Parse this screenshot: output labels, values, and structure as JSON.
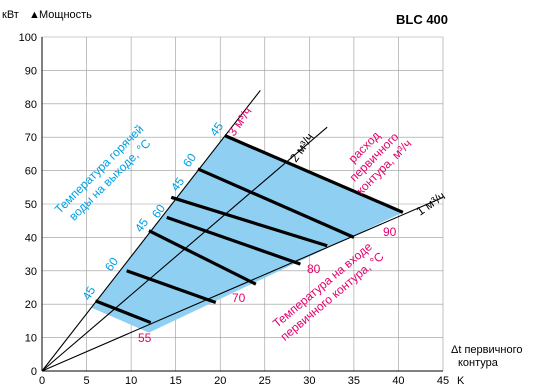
{
  "chart_data": {
    "type": "line",
    "title": "BLC 400",
    "ylabel_unit": "кВт",
    "ylabel": "Мощность",
    "xlabel": "Δt первичного",
    "xlabel_line2": "контура",
    "xunit": "K",
    "xlim": [
      0,
      45
    ],
    "ylim": [
      0,
      100
    ],
    "xticks": [
      "0",
      "5",
      "10",
      "15",
      "20",
      "25",
      "30",
      "35",
      "40",
      "45"
    ],
    "yticks": [
      "0",
      "10",
      "20",
      "30",
      "40",
      "50",
      "60",
      "70",
      "80",
      "90",
      "100"
    ],
    "grid": true,
    "flow_lines": [
      {
        "name": "1 м³/ч",
        "x": [
          0,
          45
        ],
        "y": [
          0,
          52
        ]
      },
      {
        "name": "2 м³/ч",
        "x": [
          0,
          32
        ],
        "y": [
          0,
          73
        ]
      },
      {
        "name": "3 м³/ч",
        "x": [
          0,
          24.5
        ],
        "y": [
          0,
          84
        ]
      }
    ],
    "constant_outlet_temp_lines": [
      {
        "outlet": "45",
        "inlet": "55",
        "x": [
          6.0,
          12.2
        ],
        "y": [
          21.0,
          14.5
        ]
      },
      {
        "outlet": "60",
        "inlet": "70",
        "x": [
          9.5,
          19.5
        ],
        "y": [
          30.0,
          20.5
        ]
      },
      {
        "outlet": "45",
        "inlet": "70",
        "x": [
          12.0,
          24.0
        ],
        "y": [
          42.0,
          26.0
        ]
      },
      {
        "outlet": "60",
        "inlet": "80",
        "x": [
          14.0,
          29.0
        ],
        "y": [
          46.0,
          32.0
        ]
      },
      {
        "outlet": "45",
        "inlet": "80",
        "x": [
          14.5,
          32.0
        ],
        "y": [
          52.0,
          37.5
        ]
      },
      {
        "outlet": "60",
        "inlet": "90",
        "x": [
          17.5,
          35.0
        ],
        "y": [
          60.5,
          40.0
        ]
      },
      {
        "outlet": "45",
        "inlet": "90",
        "x": [
          20.5,
          40.5
        ],
        "y": [
          70.5,
          47.5
        ]
      }
    ],
    "shaded_region": {
      "x": [
        5.5,
        20.5,
        40.5,
        12.0
      ],
      "y": [
        19.0,
        70.5,
        47.5,
        11.5
      ]
    },
    "labels": {
      "flow_labels": [
        "1 м³/ч",
        "2 м³/ч",
        "3 м³/ч"
      ],
      "flow_title": [
        "расход",
        "первичного",
        "контура, м³/ч"
      ],
      "outlet_title": [
        "Температура горячей",
        "воды на выходе, °C"
      ],
      "inlet_title": [
        "Температура на входе",
        "первичного контура, °C"
      ],
      "outlet_temps": [
        "45",
        "60",
        "45",
        "60",
        "45",
        "60",
        "45"
      ],
      "inlet_temps": [
        "55",
        "70",
        "80",
        "90"
      ]
    }
  }
}
